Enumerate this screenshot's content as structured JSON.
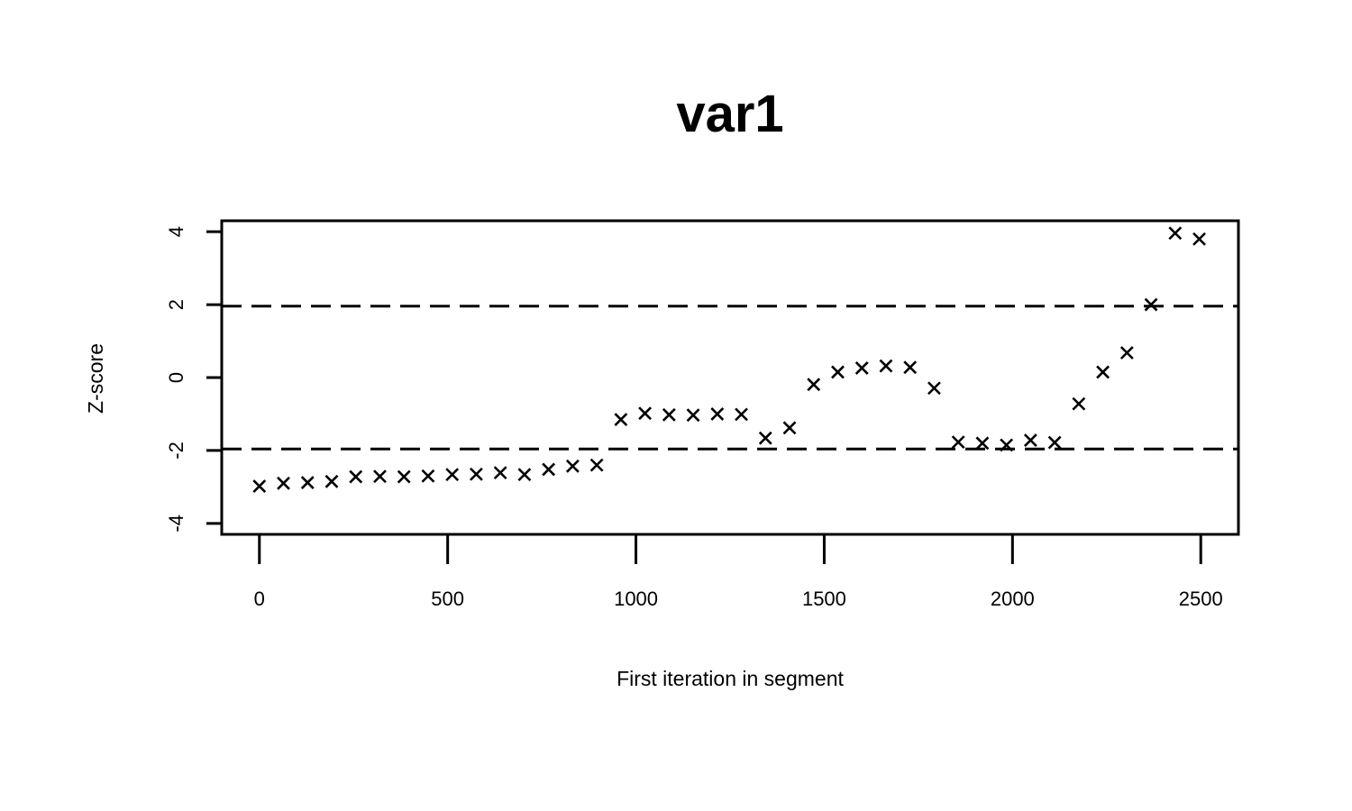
{
  "chart_data": {
    "type": "scatter",
    "title": "var1",
    "xlabel": "First iteration in segment",
    "ylabel": "Z-score",
    "xlim": [
      -100,
      2600
    ],
    "ylim": [
      -4.3,
      4.3
    ],
    "x_ticks": [
      0,
      500,
      1000,
      1500,
      2000,
      2500
    ],
    "y_ticks": [
      -4,
      -2,
      0,
      2,
      4
    ],
    "marker": "x",
    "reference_lines": [
      -1.96,
      1.96
    ],
    "reference_line_style": "dashed",
    "grid": false,
    "series": [
      {
        "x": [
          0,
          64,
          128,
          192,
          256,
          320,
          384,
          448,
          512,
          576,
          640,
          704,
          768,
          832,
          896,
          960,
          1024,
          1088,
          1152,
          1216,
          1280,
          1344,
          1408,
          1472,
          1536,
          1600,
          1664,
          1728,
          1792,
          1856,
          1920,
          1984,
          2048,
          2112,
          2176,
          2240,
          2304,
          2368,
          2432,
          2496
        ],
        "y": [
          -2.98,
          -2.9,
          -2.88,
          -2.85,
          -2.72,
          -2.71,
          -2.72,
          -2.7,
          -2.66,
          -2.65,
          -2.61,
          -2.66,
          -2.52,
          -2.43,
          -2.4,
          -1.15,
          -0.98,
          -1.02,
          -1.03,
          -1.0,
          -1.01,
          -1.66,
          -1.38,
          -0.19,
          0.15,
          0.26,
          0.32,
          0.28,
          -0.29,
          -1.77,
          -1.8,
          -1.85,
          -1.72,
          -1.78,
          -0.72,
          0.15,
          0.68,
          2.0,
          3.96,
          3.8
        ]
      }
    ]
  }
}
